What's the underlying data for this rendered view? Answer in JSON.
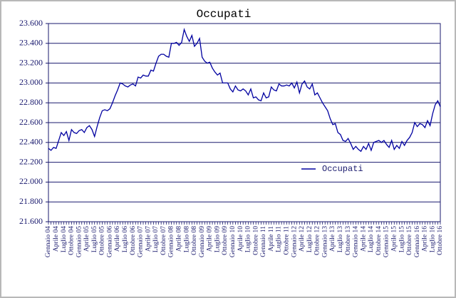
{
  "chart_data": {
    "type": "line",
    "title": "Occupati",
    "categories": [
      "Gennaio 04",
      null,
      null,
      "Aprile 04",
      null,
      null,
      "Luglio 04",
      null,
      null,
      "Ottobre 04",
      null,
      null,
      "Gennaio 05",
      null,
      null,
      "Aprile 05",
      null,
      null,
      "Luglio 05",
      null,
      null,
      "Ottobre 05",
      null,
      null,
      "Gennaio 06",
      null,
      null,
      "Aprile 06",
      null,
      null,
      "Luglio 06",
      null,
      null,
      "Ottobre 06",
      null,
      null,
      "Gennaio 07",
      null,
      null,
      "Aprile 07",
      null,
      null,
      "Luglio 07",
      null,
      null,
      "Ottobre 07",
      null,
      null,
      "Gennaio 08",
      null,
      null,
      "Aprile 08",
      null,
      null,
      "Luglio 08",
      null,
      null,
      "Ottobre 08",
      null,
      null,
      "Gennaio 09",
      null,
      null,
      "Aprile 09",
      null,
      null,
      "Luglio 09",
      null,
      null,
      "Ottobre 09",
      null,
      null,
      "Gennaio 10",
      null,
      null,
      "Aprile 10",
      null,
      null,
      "Luglio 10",
      null,
      null,
      "Ottobre 10",
      null,
      null,
      "Gennaio 11",
      null,
      null,
      "Aprile 11",
      null,
      null,
      "Luglio 11",
      null,
      null,
      "Ottobre 11",
      null,
      null,
      "Gennaio 12",
      null,
      null,
      "Aprile 12",
      null,
      null,
      "Luglio 12",
      null,
      null,
      "Ottobre 12",
      null,
      null,
      "Gennaio 13",
      null,
      null,
      "Aprile 13",
      null,
      null,
      "Luglio 13",
      null,
      null,
      "Ottobre 13",
      null,
      null,
      "Gennaio 14",
      null,
      null,
      "Aprile 14",
      null,
      null,
      "Luglio 14",
      null,
      null,
      "Ottobre 14",
      null,
      null,
      "Gennaio 15",
      null,
      null,
      "Aprile 15",
      null,
      null,
      "Luglio 15",
      null,
      null,
      "Ottobre 15",
      null,
      null,
      "Gennaio 16",
      null,
      null,
      "Aprile 16",
      null,
      null,
      "Luglio 16",
      null,
      null,
      "Ottobre 16"
    ],
    "series": [
      {
        "name": "Occupati",
        "color": "#0000a0",
        "values": [
          22340,
          22320,
          22350,
          22340,
          22420,
          22500,
          22470,
          22510,
          22420,
          22530,
          22500,
          22490,
          22520,
          22530,
          22500,
          22550,
          22570,
          22530,
          22460,
          22560,
          22650,
          22720,
          22730,
          22720,
          22740,
          22800,
          22870,
          22930,
          23000,
          22990,
          22970,
          22960,
          22980,
          22990,
          22970,
          23060,
          23050,
          23080,
          23070,
          23070,
          23130,
          23120,
          23200,
          23270,
          23290,
          23290,
          23270,
          23260,
          23400,
          23400,
          23410,
          23380,
          23410,
          23540,
          23470,
          23420,
          23480,
          23370,
          23400,
          23450,
          23260,
          23220,
          23200,
          23210,
          23150,
          23110,
          23080,
          23100,
          23000,
          23000,
          23000,
          22940,
          22910,
          22970,
          22930,
          22920,
          22940,
          22920,
          22880,
          22940,
          22850,
          22860,
          22830,
          22820,
          22900,
          22850,
          22860,
          22960,
          22930,
          22920,
          22990,
          22970,
          22970,
          22980,
          22970,
          23000,
          22950,
          23010,
          22900,
          22990,
          23020,
          22960,
          22940,
          22990,
          22880,
          22900,
          22850,
          22800,
          22760,
          22720,
          22640,
          22580,
          22590,
          22500,
          22480,
          22420,
          22410,
          22440,
          22390,
          22330,
          22360,
          22330,
          22310,
          22360,
          22330,
          22390,
          22320,
          22400,
          22410,
          22420,
          22400,
          22420,
          22380,
          22350,
          22420,
          22330,
          22370,
          22340,
          22410,
          22370,
          22420,
          22450,
          22500,
          22600,
          22560,
          22590,
          22580,
          22550,
          22620,
          22570,
          22690,
          22780,
          22820,
          22760
        ]
      }
    ],
    "ylim": [
      21600,
      23600
    ],
    "yticks": [
      {
        "value": 21600,
        "label": "21.600"
      },
      {
        "value": 21800,
        "label": "21.800"
      },
      {
        "value": 22000,
        "label": "22.000"
      },
      {
        "value": 22200,
        "label": "22.200"
      },
      {
        "value": 22400,
        "label": "22.400"
      },
      {
        "value": 22600,
        "label": "22.600"
      },
      {
        "value": 22800,
        "label": "22.800"
      },
      {
        "value": 23000,
        "label": "23.000"
      },
      {
        "value": 23200,
        "label": "23.200"
      },
      {
        "value": 23400,
        "label": "23.400"
      },
      {
        "value": 23600,
        "label": "23.600"
      }
    ],
    "grid": true,
    "legend": "right"
  }
}
